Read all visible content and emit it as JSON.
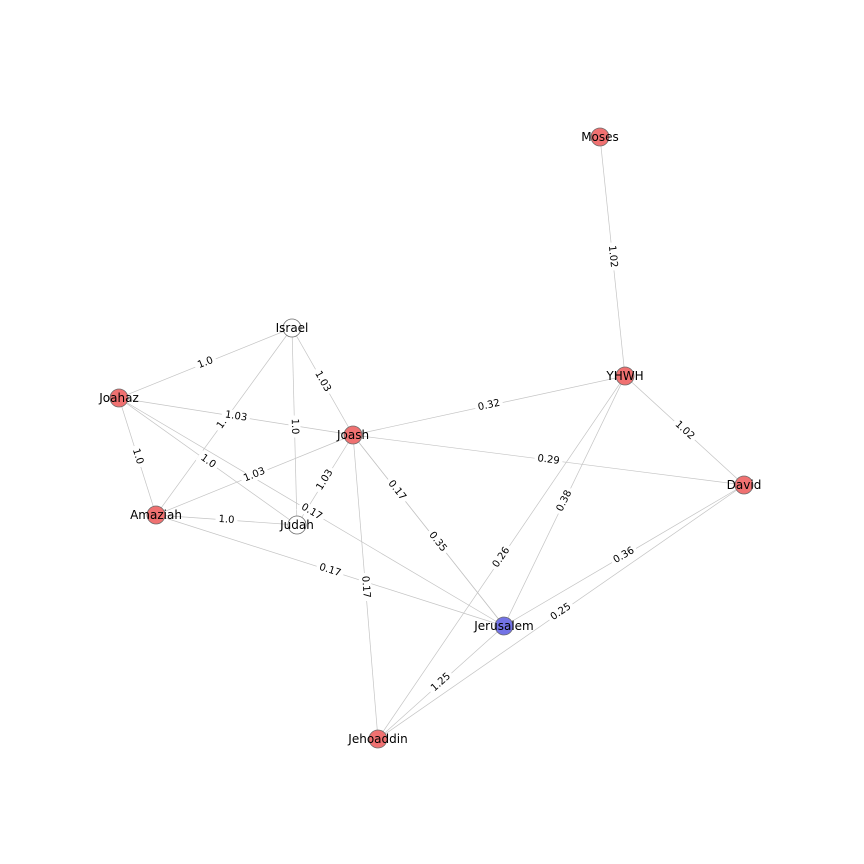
{
  "colors": {
    "person": "#f07171",
    "place": "#7373e6",
    "group": "#ffffff",
    "edge": "#c4c4c4",
    "node_stroke": "#6a6a6a"
  },
  "nodes": [
    {
      "id": "moses",
      "label": "Moses",
      "kind": "person"
    },
    {
      "id": "yhwh",
      "label": "YHWH",
      "kind": "person"
    },
    {
      "id": "david",
      "label": "David",
      "kind": "person"
    },
    {
      "id": "israel",
      "label": "Israel",
      "kind": "group"
    },
    {
      "id": "joahaz",
      "label": "Joahaz",
      "kind": "person"
    },
    {
      "id": "joash",
      "label": "Joash",
      "kind": "person"
    },
    {
      "id": "amaziah",
      "label": "Amaziah",
      "kind": "person"
    },
    {
      "id": "judah",
      "label": "Judah",
      "kind": "group"
    },
    {
      "id": "jerusalem",
      "label": "Jerusalem",
      "kind": "place"
    },
    {
      "id": "jehoaddin",
      "label": "Jehoaddin",
      "kind": "person"
    }
  ],
  "edges": [
    {
      "source": "moses",
      "target": "yhwh",
      "label": "1.02"
    },
    {
      "source": "yhwh",
      "target": "david",
      "label": "1.02"
    },
    {
      "source": "yhwh",
      "target": "joash",
      "label": "0.32"
    },
    {
      "source": "yhwh",
      "target": "jerusalem",
      "label": "0.38"
    },
    {
      "source": "yhwh",
      "target": "jehoaddin",
      "label": "0.26"
    },
    {
      "source": "david",
      "target": "joash",
      "label": "0.29"
    },
    {
      "source": "david",
      "target": "jerusalem",
      "label": "0.36"
    },
    {
      "source": "david",
      "target": "jehoaddin",
      "label": "0.25"
    },
    {
      "source": "israel",
      "target": "joahaz",
      "label": "1.0"
    },
    {
      "source": "israel",
      "target": "joash",
      "label": "1.03"
    },
    {
      "source": "israel",
      "target": "judah",
      "label": "1.0"
    },
    {
      "source": "israel",
      "target": "amaziah",
      "label": "1.0"
    },
    {
      "source": "joahaz",
      "target": "joash",
      "label": "1.03"
    },
    {
      "source": "joahaz",
      "target": "amaziah",
      "label": "1.0"
    },
    {
      "source": "joahaz",
      "target": "judah",
      "label": "1.0"
    },
    {
      "source": "joahaz",
      "target": "jerusalem",
      "label": "0.17"
    },
    {
      "source": "joash",
      "target": "amaziah",
      "label": "1.03"
    },
    {
      "source": "joash",
      "target": "judah",
      "label": "1.03"
    },
    {
      "source": "joash",
      "target": "jerusalem",
      "label": "0.17"
    },
    {
      "source": "joash",
      "target": "jehoaddin",
      "label": "0.17"
    },
    {
      "source": "joash",
      "target": "jerusalem",
      "label": "0.35"
    },
    {
      "source": "amaziah",
      "target": "judah",
      "label": "1.0"
    },
    {
      "source": "amaziah",
      "target": "jerusalem",
      "label": "0.17"
    },
    {
      "source": "jerusalem",
      "target": "jehoaddin",
      "label": "1.25"
    }
  ]
}
